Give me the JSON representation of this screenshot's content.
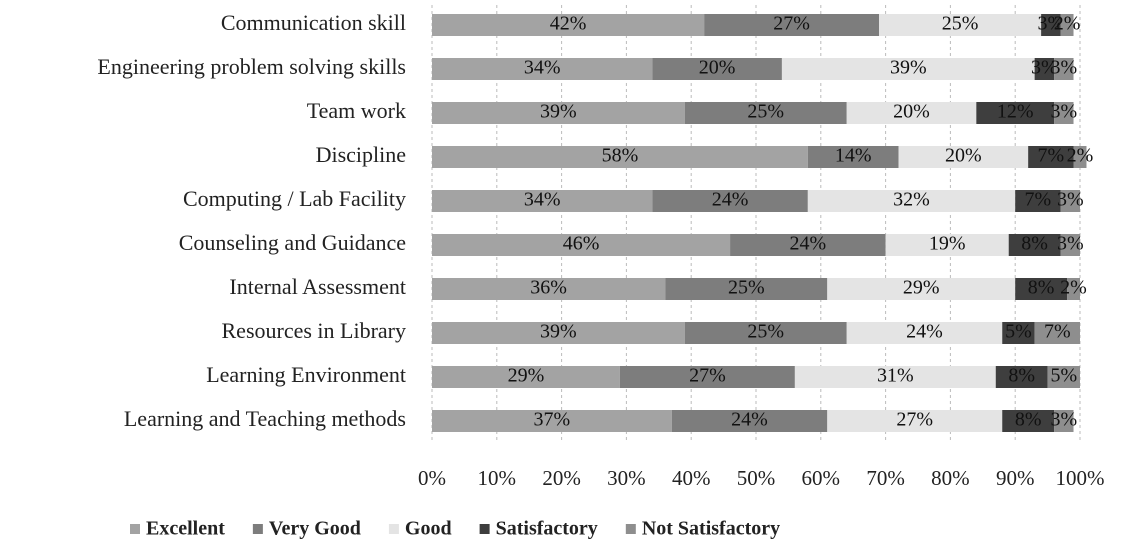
{
  "chart_data": {
    "type": "stacked_barh",
    "categories": [
      "Communication skill",
      "Engineering problem solving skills",
      "Team work",
      "Discipline",
      "Computing / Lab Facility",
      "Counseling and Guidance",
      "Internal Assessment",
      "Resources in Library",
      "Learning Environment",
      "Learning and Teaching methods"
    ],
    "series": [
      {
        "name": "Excellent",
        "color": "#a3a3a3",
        "values": [
          42,
          34,
          39,
          58,
          34,
          46,
          36,
          39,
          29,
          37
        ],
        "value_labels": [
          "42%",
          "34%",
          "39%",
          "58%",
          "34%",
          "46%",
          "36%",
          "39%",
          "29%",
          "37%"
        ]
      },
      {
        "name": "Very Good",
        "color": "#7d7d7d",
        "values": [
          27,
          20,
          25,
          14,
          24,
          24,
          25,
          25,
          27,
          24
        ],
        "value_labels": [
          "27%",
          "20%",
          "25%",
          "14%",
          "24%",
          "24%",
          "25%",
          "25%",
          "27%",
          "24%"
        ]
      },
      {
        "name": "Good",
        "color": "#e4e4e4",
        "values": [
          25,
          39,
          20,
          20,
          32,
          19,
          29,
          24,
          31,
          27
        ],
        "value_labels": [
          "25%",
          "39%",
          "20%",
          "20%",
          "32%",
          "19%",
          "29%",
          "24%",
          "31%",
          "27%"
        ]
      },
      {
        "name": "Satisfactory",
        "color": "#3e3e3e",
        "values": [
          3,
          3,
          12,
          7,
          7,
          8,
          8,
          5,
          8,
          8
        ],
        "value_labels": [
          "3%",
          "3%",
          "12%",
          "7%",
          "7%",
          "8%",
          "8%",
          "5%",
          "8%",
          "8%"
        ]
      },
      {
        "name": "Not Satisfactory",
        "color": "#8e8e8e",
        "values": [
          2,
          3,
          3,
          2,
          3,
          3,
          2,
          7,
          5,
          3
        ],
        "value_labels": [
          "2%",
          "3%",
          "3%",
          "2%",
          "3%",
          "3%",
          "2%",
          "7%",
          "5%",
          "3%"
        ]
      }
    ],
    "xlim": [
      0,
      100
    ],
    "xticks": [
      {
        "value": 0,
        "label": "0%"
      },
      {
        "value": 10,
        "label": "10%"
      },
      {
        "value": 20,
        "label": "20%"
      },
      {
        "value": 30,
        "label": "30%"
      },
      {
        "value": 40,
        "label": "40%"
      },
      {
        "value": 50,
        "label": "50%"
      },
      {
        "value": 60,
        "label": "60%"
      },
      {
        "value": 70,
        "label": "70%"
      },
      {
        "value": 80,
        "label": "80%"
      },
      {
        "value": 90,
        "label": "90%"
      },
      {
        "value": 100,
        "label": "100%"
      }
    ],
    "grid": true,
    "legend": "bottom"
  }
}
